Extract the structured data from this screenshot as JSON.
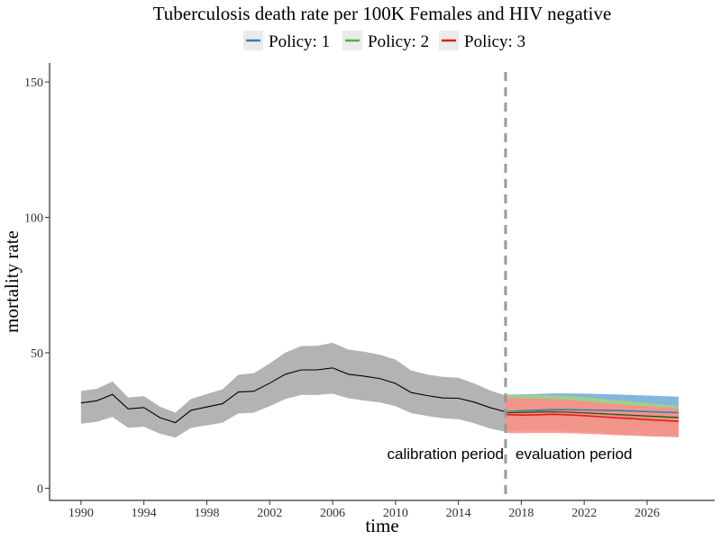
{
  "chart_data": {
    "type": "line",
    "title": "Tuberculosis death rate per 100K Females and HIV negative",
    "xlabel": "time",
    "ylabel": "mortality rate",
    "xlim": [
      1988.0,
      2030.3
    ],
    "ylim": [
      -4.5,
      157
    ],
    "x_ticks": [
      1990,
      1994,
      1998,
      2002,
      2006,
      2010,
      2014,
      2018,
      2022,
      2026
    ],
    "y_ticks": [
      0,
      50,
      100,
      150
    ],
    "grid": false,
    "legend_position": "top",
    "divider_x": 2017,
    "annotations": {
      "left": "calibration period",
      "right": "evaluation period"
    },
    "calibration": {
      "x": [
        1990,
        1991,
        1992,
        1993,
        1994,
        1995,
        1996,
        1997,
        1998,
        1999,
        2000,
        2001,
        2002,
        2003,
        2004,
        2005,
        2006,
        2007,
        2008,
        2009,
        2010,
        2011,
        2012,
        2013,
        2014,
        2015,
        2016,
        2017
      ],
      "mean": [
        31.5,
        32.3,
        34.6,
        29.3,
        29.8,
        26.1,
        24.2,
        28.8,
        30.0,
        31.2,
        35.5,
        35.8,
        38.8,
        42.1,
        43.7,
        43.7,
        44.4,
        42.1,
        41.4,
        40.5,
        38.7,
        35.3,
        34.2,
        33.3,
        33.2,
        31.8,
        29.8,
        28.2
      ],
      "lower": [
        23.8,
        24.5,
        26.3,
        22.3,
        22.7,
        20.2,
        18.7,
        22.3,
        23.2,
        24.2,
        27.6,
        27.9,
        30.3,
        33.0,
        34.4,
        34.4,
        34.9,
        33.2,
        32.4,
        31.7,
        30.3,
        27.7,
        26.7,
        25.8,
        25.5,
        24.0,
        22.1,
        20.8
      ],
      "upper": [
        35.9,
        36.7,
        39.4,
        33.5,
        34.0,
        30.2,
        27.9,
        33.0,
        34.8,
        36.5,
        41.9,
        42.5,
        46.1,
        50.1,
        52.5,
        52.6,
        53.7,
        51.2,
        50.4,
        49.3,
        47.5,
        43.5,
        42.0,
        41.1,
        40.8,
        38.7,
        36.1,
        34.2
      ]
    },
    "x_eval": [
      2017,
      2018,
      2019,
      2020,
      2021,
      2022,
      2023,
      2024,
      2025,
      2026,
      2027,
      2028
    ],
    "series": [
      {
        "name": "Policy: 1",
        "color": "#377EB8",
        "fill": "#6FA8D6",
        "values": [
          28.2,
          28.6,
          28.8,
          29.0,
          29.0,
          28.9,
          28.8,
          28.7,
          28.5,
          28.3,
          28.1,
          27.9
        ],
        "lower": [
          21.5,
          21.7,
          21.8,
          21.8,
          21.7,
          21.5,
          21.3,
          21.0,
          20.8,
          20.5,
          20.3,
          20.0
        ],
        "upper": [
          34.5,
          34.6,
          34.8,
          35.0,
          35.0,
          34.9,
          34.8,
          34.6,
          34.4,
          34.2,
          34.0,
          33.8
        ]
      },
      {
        "name": "Policy: 2",
        "color": "#4DAF4A",
        "fill": "#A3D37F",
        "values": [
          28.0,
          28.2,
          28.3,
          28.3,
          28.1,
          27.8,
          27.5,
          27.1,
          26.8,
          26.5,
          26.2,
          25.9
        ],
        "lower": [
          21.2,
          21.3,
          21.3,
          21.2,
          20.9,
          20.6,
          20.3,
          20.0,
          19.7,
          19.4,
          19.1,
          18.9
        ],
        "upper": [
          34.2,
          34.3,
          34.4,
          34.3,
          34.0,
          33.6,
          33.1,
          32.6,
          32.0,
          31.5,
          31.0,
          30.5
        ]
      },
      {
        "name": "Policy: 3",
        "color": "#E41A1C",
        "fill": "#FF8A8A",
        "values": [
          27.2,
          27.0,
          27.1,
          27.3,
          27.1,
          26.8,
          26.4,
          26.0,
          25.7,
          25.3,
          25.0,
          24.7
        ],
        "lower": [
          20.4,
          20.3,
          20.4,
          20.4,
          20.3,
          20.1,
          19.9,
          19.6,
          19.4,
          19.2,
          19.0,
          18.8
        ],
        "upper": [
          33.5,
          33.2,
          33.0,
          33.0,
          32.6,
          32.1,
          31.6,
          31.1,
          30.6,
          30.2,
          29.8,
          29.4
        ]
      }
    ]
  }
}
